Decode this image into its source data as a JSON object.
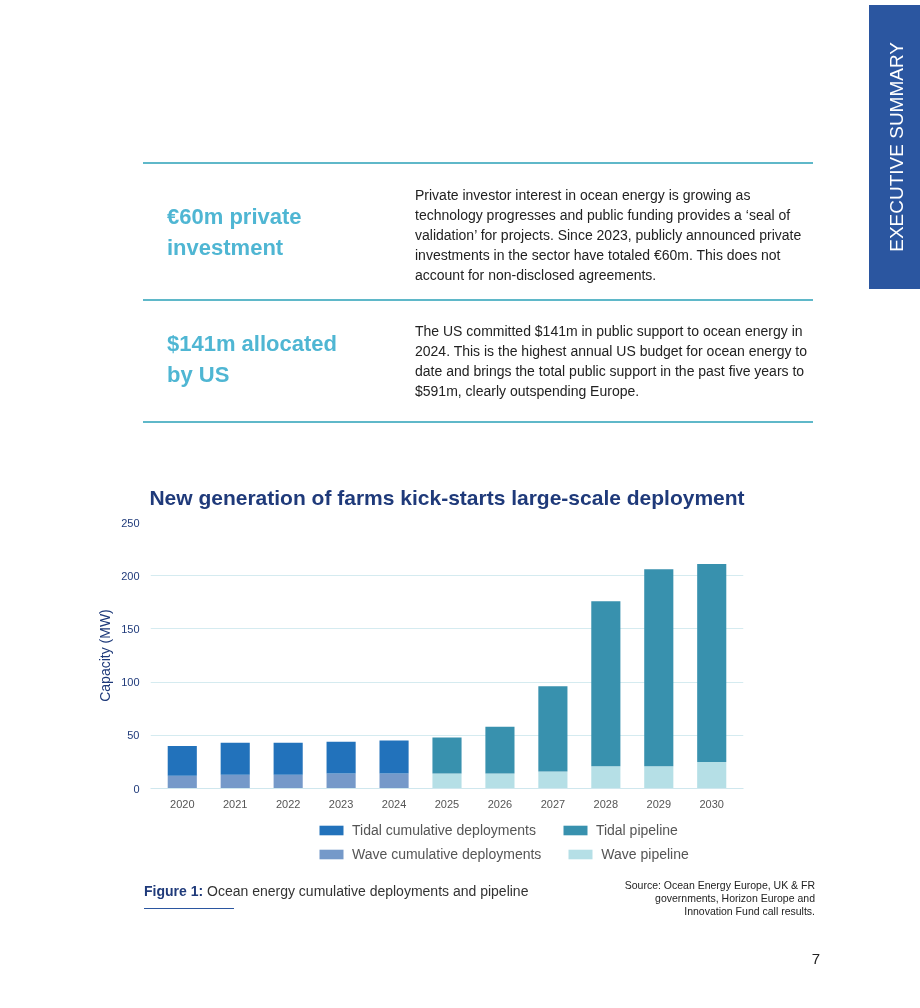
{
  "chart_data": {
    "type": "bar",
    "title": "New generation of farms kick-starts large-scale deployment",
    "ylabel": "Capacity (MW)",
    "categories": [
      "2020",
      "2021",
      "2022",
      "2023",
      "2024",
      "2025",
      "2026",
      "2027",
      "2028",
      "2029",
      "2030"
    ],
    "stacked": true,
    "series": [
      {
        "name": "Wave cumulative deployments",
        "color": "#7599c9",
        "values": [
          12,
          13,
          13,
          14,
          14,
          null,
          null,
          null,
          null,
          null,
          null
        ]
      },
      {
        "name": "Wave pipeline",
        "color": "#b5dfe6",
        "values": [
          null,
          null,
          null,
          null,
          null,
          14,
          14,
          16,
          21,
          21,
          25
        ]
      },
      {
        "name": "Tidal cumulative deployments",
        "color": "#2272bb",
        "values": [
          28,
          30,
          30,
          30,
          31,
          null,
          null,
          null,
          null,
          null,
          null
        ]
      },
      {
        "name": "Tidal pipeline",
        "color": "#3891ae",
        "values": [
          null,
          null,
          null,
          null,
          null,
          34,
          44,
          80,
          155,
          185,
          186
        ]
      }
    ],
    "ylim": [
      0,
      250
    ],
    "yticks": [
      0,
      50,
      100,
      150,
      200,
      250
    ],
    "grid": "y",
    "legend": "bottom",
    "annotations": [
      "EXECUTIVE SUMMARY",
      "€60m private investment",
      "Private investor interest in ocean energy is growing as technology progresses and public funding provides a ‘seal of validation’ for projects. Since 2023, publicly announced private investments in the sector have totaled €60m. This does not account for non-disclosed agreements.",
      "$141m allocated by US",
      "The US committed $141m in public support to ocean energy in 2024. This is the highest annual US budget for ocean energy to date and brings the total public support in the past five years to $591m, clearly outspending Europe.",
      "Figure 1: Ocean energy cumulative deployments and pipeline",
      "Source: Ocean Energy Europe, UK & FR governments, Horizon Europe and Innovation Fund call results.",
      "7"
    ]
  }
}
